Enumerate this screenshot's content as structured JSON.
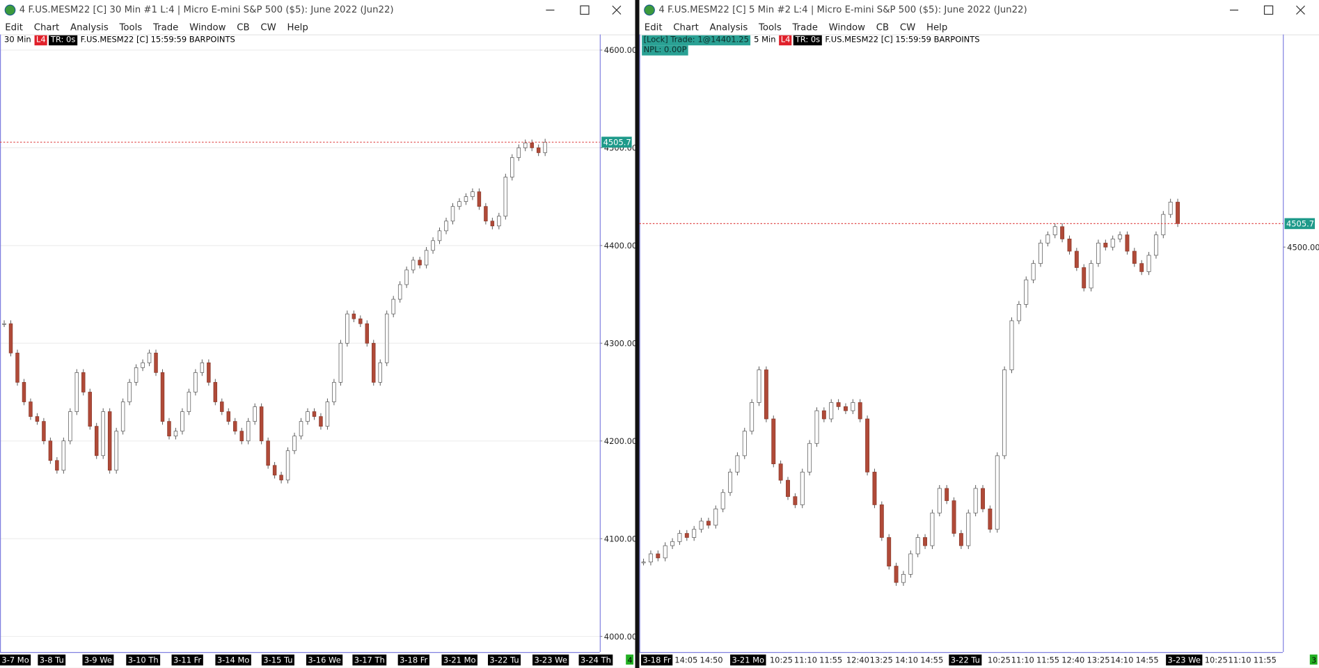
{
  "windows": [
    {
      "title": "4 F.US.MESM22 [C]  30 Min   #1 L:4 | Micro E-mini S&P 500 ($5): June 2022 (Jun22)",
      "menu": [
        "Edit",
        "Chart",
        "Analysis",
        "Tools",
        "Trade",
        "Window",
        "CB",
        "CW",
        "Help"
      ],
      "status": {
        "interval": "30 Min",
        "level": "L4",
        "timer": "TR: 0s",
        "symbol": "F.US.MESM22 [C] 15:59:59 BARPOINTS"
      },
      "chart": {
        "type": "candlestick",
        "ylim": [
          3984,
          4616
        ],
        "yticks": [
          {
            "value": 4000,
            "label": "4000.00"
          },
          {
            "value": 4100,
            "label": "4100.00"
          },
          {
            "value": 4200,
            "label": "4200.00"
          },
          {
            "value": 4300,
            "label": "4300.00"
          },
          {
            "value": 4400,
            "label": "4400.00"
          },
          {
            "value": 4500,
            "label": "4500.00"
          },
          {
            "value": 4600,
            "label": "4600.00"
          }
        ],
        "grid": true,
        "last_price": 4505.75,
        "closes": [
          4320,
          4290,
          4260,
          4240,
          4225,
          4220,
          4200,
          4180,
          4170,
          4200,
          4230,
          4270,
          4250,
          4215,
          4185,
          4230,
          4170,
          4210,
          4240,
          4260,
          4275,
          4280,
          4290,
          4270,
          4220,
          4205,
          4210,
          4230,
          4250,
          4270,
          4280,
          4260,
          4240,
          4230,
          4220,
          4210,
          4200,
          4220,
          4235,
          4200,
          4175,
          4165,
          4160,
          4190,
          4205,
          4220,
          4230,
          4225,
          4215,
          4240,
          4260,
          4300,
          4330,
          4325,
          4320,
          4300,
          4260,
          4280,
          4330,
          4345,
          4360,
          4375,
          4385,
          4380,
          4395,
          4405,
          4415,
          4425,
          4440,
          4445,
          4450,
          4455,
          4440,
          4425,
          4420,
          4430,
          4470,
          4490,
          4500,
          4505,
          4500,
          4495,
          4505.75
        ],
        "x_labels": [
          "3-7 Mo",
          "3-8 Tu",
          "3-9 We",
          "3-10 Th",
          "3-11 Fr",
          "3-14 Mo",
          "3-15 Tu",
          "3-16 We",
          "3-17 Th",
          "3-18 Fr",
          "3-21 Mo",
          "3-22 Tu",
          "3-23 We",
          "3-24 Th"
        ]
      },
      "corner_badge": "4"
    },
    {
      "title": "4 F.US.MESM22 [C]  5 Min   #2 L:4 | Micro E-mini S&P 500 ($5): June 2022 (Jun22)",
      "menu": [
        "Edit",
        "Chart",
        "Analysis",
        "Tools",
        "Trade",
        "Window",
        "CB",
        "CW",
        "Help"
      ],
      "status": {
        "lock_trade": "[Lock] Trade: 1@14401.25",
        "interval": "5 Min",
        "level": "L4",
        "timer": "TR: 0s",
        "symbol": "F.US.MESM22 [C] 15:59:59 BARPOINTS",
        "npl": "NPL: 0.00P"
      },
      "chart": {
        "type": "candlestick",
        "ylim": [
          4401,
          4552
        ],
        "yticks": [
          {
            "value": 4500,
            "label": "4500.00"
          }
        ],
        "grid": false,
        "last_price": 4505.75,
        "closes": [
          4423,
          4425,
          4424,
          4427,
          4428,
          4430,
          4429,
          4431,
          4433,
          4432,
          4436,
          4440,
          4445,
          4449,
          4455,
          4462,
          4470,
          4458,
          4447,
          4443,
          4439,
          4437,
          4445,
          4452,
          4460,
          4458,
          4462,
          4461,
          4460,
          4462,
          4458,
          4445,
          4437,
          4429,
          4422,
          4418,
          4420,
          4425,
          4429,
          4427,
          4435,
          4441,
          4438,
          4430,
          4427,
          4435,
          4441,
          4436,
          4431,
          4449,
          4470,
          4482,
          4486,
          4492,
          4496,
          4501,
          4503,
          4505,
          4502,
          4499,
          4495,
          4490,
          4496,
          4501,
          4500,
          4502,
          4503,
          4499,
          4496,
          4494,
          4498,
          4503,
          4508,
          4511,
          4505.75
        ],
        "x_labels": [
          "3-18 Fr",
          "14:05",
          "14:50",
          "3-21 Mo",
          "10:25",
          "11:10",
          "11:55",
          "12:40",
          "13:25",
          "14:10",
          "14:55",
          "3-22 Tu",
          "10:25",
          "11:10",
          "11:55",
          "12:40",
          "13:25",
          "14:10",
          "14:55",
          "3-23 We",
          "10:25",
          "11:10",
          "11:55"
        ]
      },
      "corner_badge": "3"
    }
  ]
}
